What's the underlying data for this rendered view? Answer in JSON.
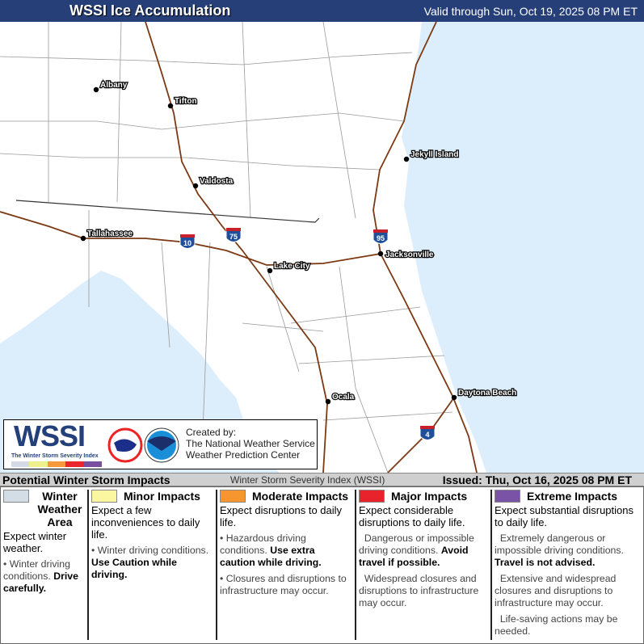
{
  "header": {
    "title": "WSSI Ice Accumulation",
    "valid": "Valid through Sun, Oct 19, 2025 08 PM ET"
  },
  "map": {
    "colors": {
      "land": "#ffffff",
      "water": "#dcedfb",
      "county": "#9a9a9a",
      "state": "#333333",
      "interstate": "#7b3a14"
    },
    "cities": [
      {
        "name": "Albany"
      },
      {
        "name": "Tifton"
      },
      {
        "name": "Valdosta"
      },
      {
        "name": "Jekyll Island"
      },
      {
        "name": "Tallahassee"
      },
      {
        "name": "Jacksonville"
      },
      {
        "name": "Lake City"
      },
      {
        "name": "Ocala"
      },
      {
        "name": "Daytona Beach"
      }
    ],
    "interstates": [
      "10",
      "75",
      "95",
      "4"
    ]
  },
  "logo": {
    "wssi": "WSSI",
    "subtitle": "The Winter Storm Severity Index",
    "created": [
      "Created by:",
      "The National Weather Service",
      "Weather Prediction Center"
    ],
    "colors": [
      "#d5d9e8",
      "#eef08a",
      "#f7983a",
      "#e8262c",
      "#7b4fa0"
    ]
  },
  "legend_bar": {
    "title": "Potential Winter Storm Impacts",
    "index": "Winter Storm Severity Index (WSSI)",
    "issued": "Issued: Thu, Oct 16, 2025 08 PM ET"
  },
  "categories": [
    {
      "label": "Winter Weather Area",
      "color": "#d3dde6",
      "expect": "Expect winter weather.",
      "items": [
        {
          "text": "Winter driving conditions.",
          "bold": "Drive carefully."
        }
      ]
    },
    {
      "label": "Minor Impacts",
      "color": "#fbf6a0",
      "expect": "Expect a few inconveniences to daily life.",
      "items": [
        {
          "text": "Winter driving conditions.",
          "bold": "Use Caution while driving."
        }
      ]
    },
    {
      "label": "Moderate Impacts",
      "color": "#f7952f",
      "expect": "Expect disruptions to daily life.",
      "items": [
        {
          "text": "Hazardous driving conditions.",
          "bold": "Use extra caution while driving."
        },
        {
          "text": "Closures and disruptions to infrastructure may occur.",
          "bold": ""
        }
      ]
    },
    {
      "label": "Major Impacts",
      "color": "#e8232c",
      "expect": "Expect considerable disruptions to daily life.",
      "items": [
        {
          "text": "Dangerous or impossible driving conditions.",
          "bold": "Avoid travel if possible."
        },
        {
          "text": "Widespread closures and disruptions to infrastructure may occur.",
          "bold": ""
        }
      ]
    },
    {
      "label": "Extreme Impacts",
      "color": "#7a52a6",
      "expect": "Expect substantial disruptions to daily life.",
      "items": [
        {
          "text": "Extremely dangerous or impossible driving conditions.",
          "bold": "Travel is not advised."
        },
        {
          "text": "Extensive and widespread closures and disruptions to infrastructure may occur.",
          "bold": ""
        },
        {
          "text": "Life-saving actions may be needed.",
          "bold": ""
        }
      ]
    }
  ]
}
